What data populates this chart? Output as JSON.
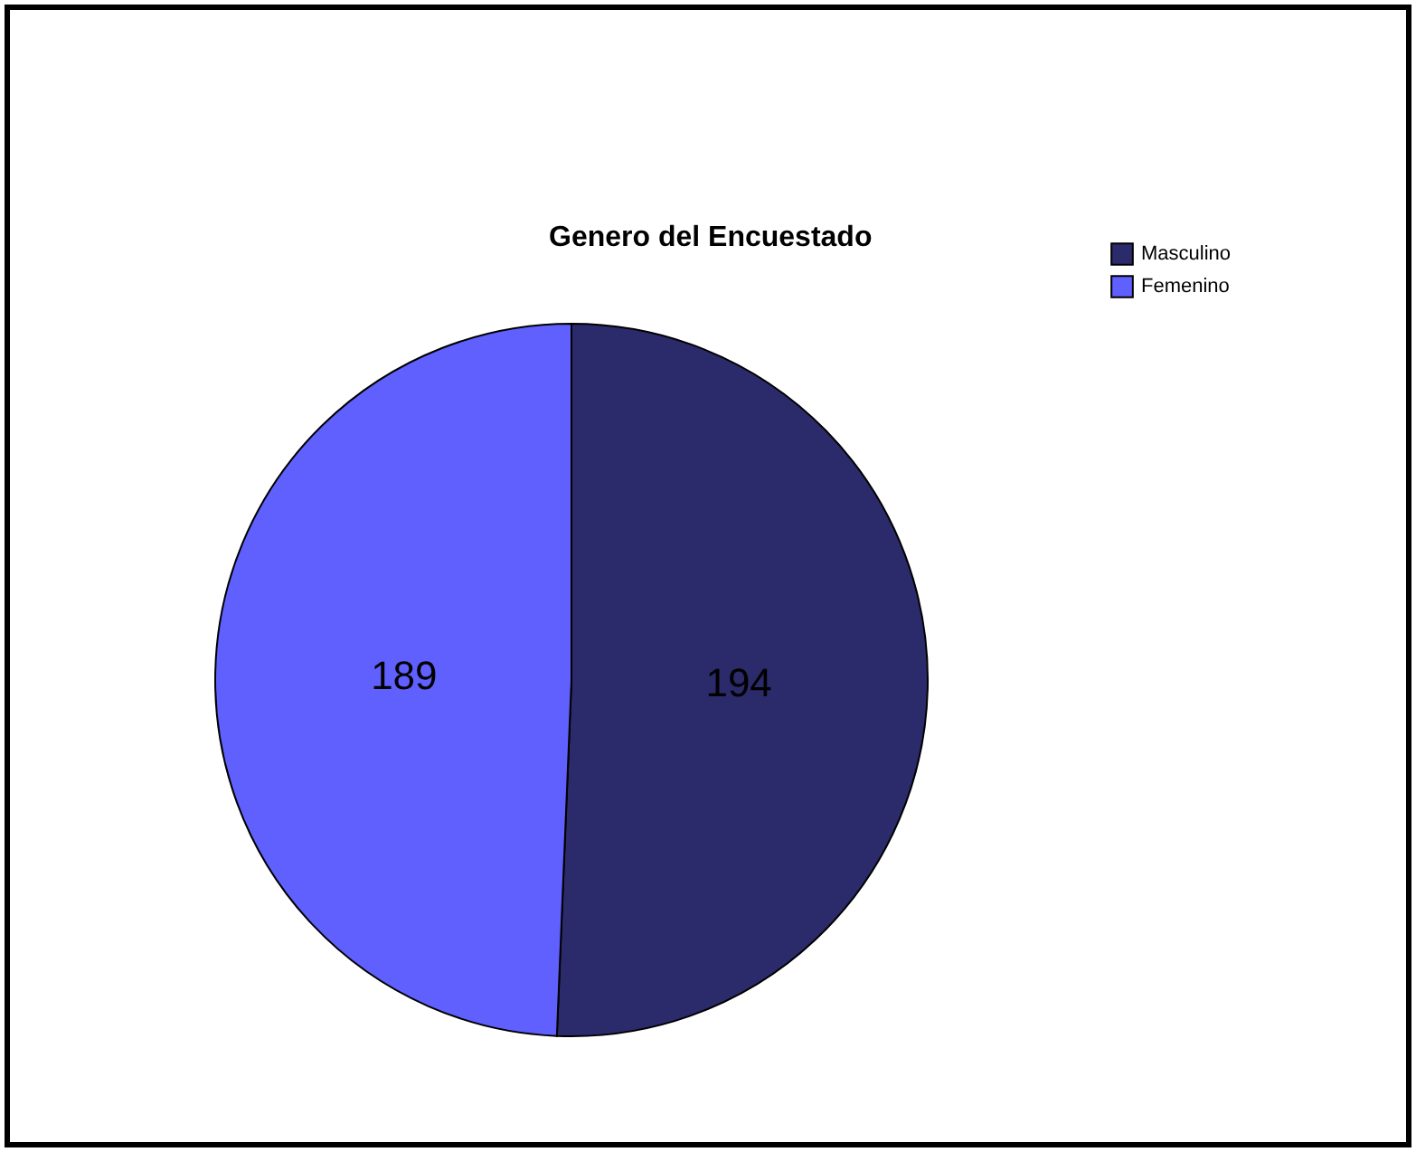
{
  "chart_data": {
    "type": "pie",
    "title": "Genero del Encuestado",
    "categories": [
      "Masculino",
      "Femenino"
    ],
    "values": [
      194,
      189
    ],
    "colors": [
      "#2b2a6b",
      "#6060ff"
    ],
    "data_labels": true,
    "legend": "top right"
  }
}
